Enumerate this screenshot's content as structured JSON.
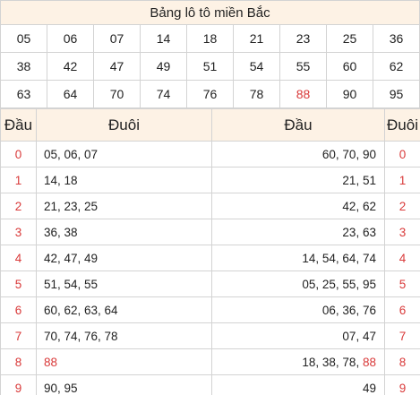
{
  "title": "Bảng lô tô miền Bắc",
  "numbers": [
    [
      "05",
      "06",
      "07",
      "14",
      "18",
      "21",
      "23",
      "25",
      "36"
    ],
    [
      "38",
      "42",
      "47",
      "49",
      "51",
      "54",
      "55",
      "60",
      "62"
    ],
    [
      "63",
      "64",
      "70",
      "74",
      "76",
      "78",
      "88",
      "90",
      "95"
    ]
  ],
  "highlight": "88",
  "headers": {
    "dau": "Đầu",
    "duoi": "Đuôi",
    "dau2": "Đầu",
    "duoi2": "Đuôi"
  },
  "left_rows": [
    {
      "dau": "0",
      "duoi": "05, 06, 07"
    },
    {
      "dau": "1",
      "duoi": "14, 18"
    },
    {
      "dau": "2",
      "duoi": "21, 23, 25"
    },
    {
      "dau": "3",
      "duoi": "36, 38"
    },
    {
      "dau": "4",
      "duoi": "42, 47, 49"
    },
    {
      "dau": "5",
      "duoi": "51, 54, 55"
    },
    {
      "dau": "6",
      "duoi": "60, 62, 63, 64"
    },
    {
      "dau": "7",
      "duoi": "70, 74, 76, 78"
    },
    {
      "dau": "8",
      "duoi": "88"
    },
    {
      "dau": "9",
      "duoi": "90, 95"
    }
  ],
  "right_rows": [
    {
      "dau": "60, 70, 90",
      "duoi": "0"
    },
    {
      "dau": "21, 51",
      "duoi": "1"
    },
    {
      "dau": "42, 62",
      "duoi": "2"
    },
    {
      "dau": "23, 63",
      "duoi": "3"
    },
    {
      "dau": "14, 54, 64, 74",
      "duoi": "4"
    },
    {
      "dau": "05, 25, 55, 95",
      "duoi": "5"
    },
    {
      "dau": "06, 36, 76",
      "duoi": "6"
    },
    {
      "dau": "07, 47",
      "duoi": "7"
    },
    {
      "dau": "18, 38, 78, 88",
      "duoi": "8"
    },
    {
      "dau": "49",
      "duoi": "9"
    }
  ],
  "colors": {
    "header_bg": "#fdf2e5",
    "accent_red": "#d93a3a",
    "border": "#d3d3d3"
  }
}
